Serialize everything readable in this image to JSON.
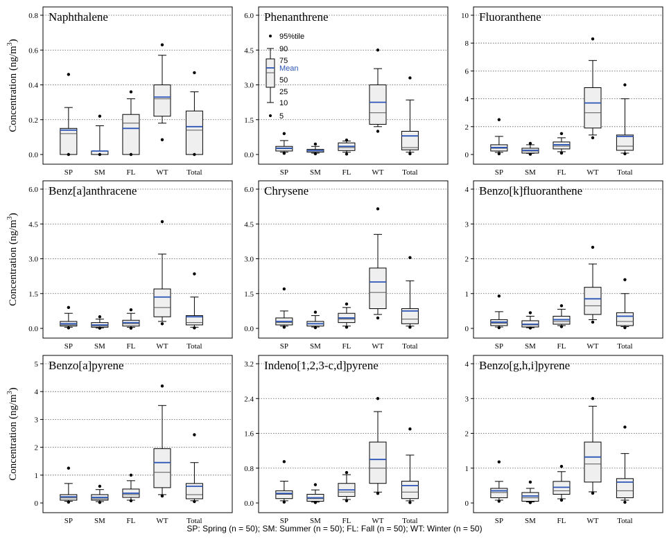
{
  "y_axis_label": "Concentration (ng/m",
  "y_axis_label_sup": "3",
  "y_axis_label_close": ")",
  "footnote": "SP: Spring (n = 50); SM: Summer (n = 50); FL: Fall (n = 50); WT: Winter (n = 50)",
  "legend": {
    "p95": "95%tile",
    "p90": "90",
    "p75": "75",
    "mean": "Mean",
    "p50": "50",
    "p25": "25",
    "p10": "10",
    "p5": "5"
  },
  "colors": {
    "box_fill": "#efefef",
    "mean": "#2b55b5",
    "median": "#555555",
    "frame": "#000000",
    "grid": "#555555"
  },
  "chart_data": [
    {
      "type": "box",
      "title": "Naphthalene",
      "ylim": [
        0,
        0.8
      ],
      "yticks": [
        "0.0",
        "0.2",
        "0.4",
        "0.6",
        "0.8"
      ],
      "tickvals": [
        0,
        0.2,
        0.4,
        0.6,
        0.8
      ],
      "categories": [
        "SP",
        "SM",
        "FL",
        "WT",
        "Total"
      ],
      "boxes": [
        {
          "p5": 0,
          "p10": 0,
          "p25": 0,
          "median": 0.12,
          "mean": 0.14,
          "p75": 0.15,
          "p90": 0.27,
          "p95": 0.46
        },
        {
          "p5": 0,
          "p10": 0,
          "p25": 0,
          "median": 0.02,
          "mean": 0.02,
          "p75": 0.02,
          "p90": 0.165,
          "p95": 0.22
        },
        {
          "p5": 0,
          "p10": 0,
          "p25": 0,
          "median": 0.18,
          "mean": 0.15,
          "p75": 0.23,
          "p90": 0.32,
          "p95": 0.36
        },
        {
          "p5": 0.085,
          "p10": 0.18,
          "p25": 0.22,
          "median": 0.32,
          "mean": 0.33,
          "p75": 0.4,
          "p90": 0.57,
          "p95": 0.63
        },
        {
          "p5": 0,
          "p10": 0,
          "p25": 0,
          "median": 0.14,
          "mean": 0.16,
          "p75": 0.25,
          "p90": 0.36,
          "p95": 0.47
        }
      ]
    },
    {
      "type": "box",
      "title": "Phenanthrene",
      "ylim": [
        0,
        6.0
      ],
      "yticks": [
        "0.0",
        "1.5",
        "3.0",
        "4.5",
        "6.0"
      ],
      "tickvals": [
        0,
        1.5,
        3.0,
        4.5,
        6.0
      ],
      "categories": [
        "SP",
        "SM",
        "FL",
        "WT",
        "Total"
      ],
      "boxes": [
        {
          "p5": 0.05,
          "p10": 0.1,
          "p25": 0.15,
          "median": 0.25,
          "mean": 0.27,
          "p75": 0.35,
          "p90": 0.6,
          "p95": 0.9
        },
        {
          "p5": 0.03,
          "p10": 0.06,
          "p25": 0.1,
          "median": 0.15,
          "mean": 0.17,
          "p75": 0.22,
          "p90": 0.35,
          "p95": 0.45
        },
        {
          "p5": 0.02,
          "p10": 0.1,
          "p25": 0.17,
          "median": 0.3,
          "mean": 0.35,
          "p75": 0.5,
          "p90": 0.58,
          "p95": 0.62
        },
        {
          "p5": 1.0,
          "p10": 1.2,
          "p25": 1.3,
          "median": 1.8,
          "mean": 2.25,
          "p75": 3.0,
          "p90": 3.7,
          "p95": 4.5
        },
        {
          "p5": 0.03,
          "p10": 0.1,
          "p25": 0.2,
          "median": 0.3,
          "mean": 0.8,
          "p75": 1.0,
          "p90": 2.35,
          "p95": 3.3
        }
      ]
    },
    {
      "type": "box",
      "title": "Fluoranthene",
      "ylim": [
        0,
        10
      ],
      "yticks": [
        "0",
        "2",
        "4",
        "6",
        "8",
        "10"
      ],
      "tickvals": [
        0,
        2,
        4,
        6,
        8,
        10
      ],
      "categories": [
        "SP",
        "SM",
        "FL",
        "WT",
        "Total"
      ],
      "boxes": [
        {
          "p5": 0.05,
          "p10": 0.15,
          "p25": 0.25,
          "median": 0.45,
          "mean": 0.5,
          "p75": 0.7,
          "p90": 1.3,
          "p95": 2.5
        },
        {
          "p5": 0.02,
          "p10": 0.08,
          "p25": 0.1,
          "median": 0.25,
          "mean": 0.3,
          "p75": 0.45,
          "p90": 0.7,
          "p95": 0.8
        },
        {
          "p5": 0.1,
          "p10": 0.2,
          "p25": 0.4,
          "median": 0.6,
          "mean": 0.7,
          "p75": 0.9,
          "p90": 1.2,
          "p95": 1.5
        },
        {
          "p5": 1.2,
          "p10": 1.4,
          "p25": 1.9,
          "median": 3.0,
          "mean": 3.7,
          "p75": 4.8,
          "p90": 6.75,
          "p95": 8.3
        },
        {
          "p5": 0.05,
          "p10": 0.1,
          "p25": 0.3,
          "median": 0.6,
          "mean": 1.3,
          "p75": 1.4,
          "p90": 4.0,
          "p95": 5.0
        }
      ]
    },
    {
      "type": "box",
      "title": "Benz[a]anthracene",
      "ylim": [
        0,
        6.0
      ],
      "yticks": [
        "0.0",
        "1.5",
        "3.0",
        "4.5",
        "6.0"
      ],
      "tickvals": [
        0,
        1.5,
        3.0,
        4.5,
        6.0
      ],
      "categories": [
        "SP",
        "SM",
        "FL",
        "WT",
        "Total"
      ],
      "boxes": [
        {
          "p5": 0.02,
          "p10": 0.05,
          "p25": 0.1,
          "median": 0.15,
          "mean": 0.2,
          "p75": 0.3,
          "p90": 0.65,
          "p95": 0.9
        },
        {
          "p5": 0.01,
          "p10": 0.02,
          "p25": 0.05,
          "median": 0.1,
          "mean": 0.15,
          "p75": 0.25,
          "p90": 0.4,
          "p95": 0.5
        },
        {
          "p5": 0.01,
          "p10": 0.05,
          "p25": 0.1,
          "median": 0.2,
          "mean": 0.25,
          "p75": 0.35,
          "p90": 0.65,
          "p95": 0.8
        },
        {
          "p5": 0.2,
          "p10": 0.3,
          "p25": 0.5,
          "median": 0.9,
          "mean": 1.35,
          "p75": 1.7,
          "p90": 3.2,
          "p95": 4.6
        },
        {
          "p5": 0.02,
          "p10": 0.05,
          "p25": 0.15,
          "median": 0.25,
          "mean": 0.5,
          "p75": 0.55,
          "p90": 1.35,
          "p95": 2.35
        }
      ]
    },
    {
      "type": "box",
      "title": "Chrysene",
      "ylim": [
        0,
        6.0
      ],
      "yticks": [
        "0.0",
        "1.5",
        "3.0",
        "4.5",
        "6.0"
      ],
      "tickvals": [
        0,
        1.5,
        3.0,
        4.5,
        6.0
      ],
      "categories": [
        "SP",
        "SM",
        "FL",
        "WT",
        "Total"
      ],
      "boxes": [
        {
          "p5": 0.05,
          "p10": 0.1,
          "p25": 0.15,
          "median": 0.25,
          "mean": 0.3,
          "p75": 0.45,
          "p90": 0.75,
          "p95": 1.7
        },
        {
          "p5": 0.03,
          "p10": 0.06,
          "p25": 0.1,
          "median": 0.2,
          "mean": 0.2,
          "p75": 0.3,
          "p90": 0.55,
          "p95": 0.7
        },
        {
          "p5": 0.05,
          "p10": 0.1,
          "p25": 0.25,
          "median": 0.4,
          "mean": 0.45,
          "p75": 0.65,
          "p90": 0.9,
          "p95": 1.05
        },
        {
          "p5": 0.45,
          "p10": 0.6,
          "p25": 0.85,
          "median": 1.55,
          "mean": 2.0,
          "p75": 2.6,
          "p90": 4.05,
          "p95": 5.15
        },
        {
          "p5": 0.05,
          "p10": 0.1,
          "p25": 0.2,
          "median": 0.4,
          "mean": 0.75,
          "p75": 0.85,
          "p90": 2.05,
          "p95": 3.05
        }
      ]
    },
    {
      "type": "box",
      "title": "Benzo[k]fluoranthene",
      "ylim": [
        0,
        4
      ],
      "yticks": [
        "0",
        "1",
        "2",
        "3",
        "4"
      ],
      "tickvals": [
        0,
        1,
        2,
        3,
        4
      ],
      "categories": [
        "SP",
        "SM",
        "FL",
        "WT",
        "Total"
      ],
      "boxes": [
        {
          "p5": 0.02,
          "p10": 0.04,
          "p25": 0.08,
          "median": 0.15,
          "mean": 0.18,
          "p75": 0.25,
          "p90": 0.48,
          "p95": 0.93
        },
        {
          "p5": 0.01,
          "p10": 0.02,
          "p25": 0.04,
          "median": 0.1,
          "mean": 0.12,
          "p75": 0.22,
          "p90": 0.35,
          "p95": 0.45
        },
        {
          "p5": 0.05,
          "p10": 0.08,
          "p25": 0.12,
          "median": 0.2,
          "mean": 0.25,
          "p75": 0.35,
          "p90": 0.55,
          "p95": 0.65
        },
        {
          "p5": 0.18,
          "p10": 0.25,
          "p25": 0.4,
          "median": 0.65,
          "mean": 0.85,
          "p75": 1.18,
          "p90": 1.85,
          "p95": 2.33
        },
        {
          "p5": 0.02,
          "p10": 0.05,
          "p25": 0.08,
          "median": 0.2,
          "mean": 0.35,
          "p75": 0.45,
          "p90": 1.0,
          "p95": 1.4
        }
      ]
    },
    {
      "type": "box",
      "title": "Benzo[a]pyrene",
      "ylim": [
        0,
        5
      ],
      "yticks": [
        "0",
        "1",
        "2",
        "3",
        "4",
        "5"
      ],
      "tickvals": [
        0,
        1,
        2,
        3,
        4,
        5
      ],
      "categories": [
        "SP",
        "SM",
        "FL",
        "WT",
        "Total"
      ],
      "boxes": [
        {
          "p5": 0.03,
          "p10": 0.06,
          "p25": 0.1,
          "median": 0.18,
          "mean": 0.22,
          "p75": 0.3,
          "p90": 0.7,
          "p95": 1.25
        },
        {
          "p5": 0.02,
          "p10": 0.05,
          "p25": 0.1,
          "median": 0.15,
          "mean": 0.2,
          "p75": 0.3,
          "p90": 0.48,
          "p95": 0.6
        },
        {
          "p5": 0.08,
          "p10": 0.1,
          "p25": 0.2,
          "median": 0.3,
          "mean": 0.35,
          "p75": 0.5,
          "p90": 0.8,
          "p95": 1.0
        },
        {
          "p5": 0.25,
          "p10": 0.3,
          "p25": 0.55,
          "median": 1.1,
          "mean": 1.45,
          "p75": 1.95,
          "p90": 3.5,
          "p95": 4.2
        },
        {
          "p5": 0.05,
          "p10": 0.08,
          "p25": 0.15,
          "median": 0.3,
          "mean": 0.6,
          "p75": 0.7,
          "p90": 1.45,
          "p95": 2.45
        }
      ]
    },
    {
      "type": "box",
      "title": "Indeno[1,2,3-c,d]pyrene",
      "ylim": [
        0,
        3.2
      ],
      "yticks": [
        "0.0",
        "0.8",
        "1.6",
        "2.4",
        "3.2"
      ],
      "tickvals": [
        0,
        0.8,
        1.6,
        2.4,
        3.2
      ],
      "categories": [
        "SP",
        "SM",
        "FL",
        "WT",
        "Total"
      ],
      "boxes": [
        {
          "p5": 0.02,
          "p10": 0.05,
          "p25": 0.1,
          "median": 0.2,
          "mean": 0.22,
          "p75": 0.28,
          "p90": 0.5,
          "p95": 0.95
        },
        {
          "p5": 0.01,
          "p10": 0.02,
          "p25": 0.04,
          "median": 0.1,
          "mean": 0.12,
          "p75": 0.2,
          "p90": 0.3,
          "p95": 0.42
        },
        {
          "p5": 0.05,
          "p10": 0.08,
          "p25": 0.15,
          "median": 0.25,
          "mean": 0.3,
          "p75": 0.45,
          "p90": 0.65,
          "p95": 0.7
        },
        {
          "p5": 0.22,
          "p10": 0.25,
          "p25": 0.45,
          "median": 0.8,
          "mean": 1.0,
          "p75": 1.4,
          "p90": 2.1,
          "p95": 2.4
        },
        {
          "p5": 0.01,
          "p10": 0.05,
          "p25": 0.1,
          "median": 0.25,
          "mean": 0.4,
          "p75": 0.5,
          "p90": 1.1,
          "p95": 1.7
        }
      ]
    },
    {
      "type": "box",
      "title": "Benzo[g,h,i]pyrene",
      "ylim": [
        0,
        4
      ],
      "yticks": [
        "0",
        "1",
        "2",
        "3",
        "4"
      ],
      "tickvals": [
        0,
        1,
        2,
        3,
        4
      ],
      "categories": [
        "SP",
        "SM",
        "FL",
        "WT",
        "Total"
      ],
      "boxes": [
        {
          "p5": 0.05,
          "p10": 0.08,
          "p25": 0.15,
          "median": 0.3,
          "mean": 0.35,
          "p75": 0.42,
          "p90": 0.62,
          "p95": 1.18
        },
        {
          "p5": 0.01,
          "p10": 0.03,
          "p25": 0.05,
          "median": 0.15,
          "mean": 0.2,
          "p75": 0.3,
          "p90": 0.42,
          "p95": 0.6
        },
        {
          "p5": 0.08,
          "p10": 0.12,
          "p25": 0.25,
          "median": 0.35,
          "mean": 0.45,
          "p75": 0.62,
          "p90": 0.9,
          "p95": 1.05
        },
        {
          "p5": 0.28,
          "p10": 0.32,
          "p25": 0.6,
          "median": 1.12,
          "mean": 1.32,
          "p75": 1.75,
          "p90": 2.78,
          "p95": 3.0
        },
        {
          "p5": 0.02,
          "p10": 0.08,
          "p25": 0.15,
          "median": 0.35,
          "mean": 0.6,
          "p75": 0.7,
          "p90": 1.42,
          "p95": 2.18
        }
      ]
    }
  ]
}
